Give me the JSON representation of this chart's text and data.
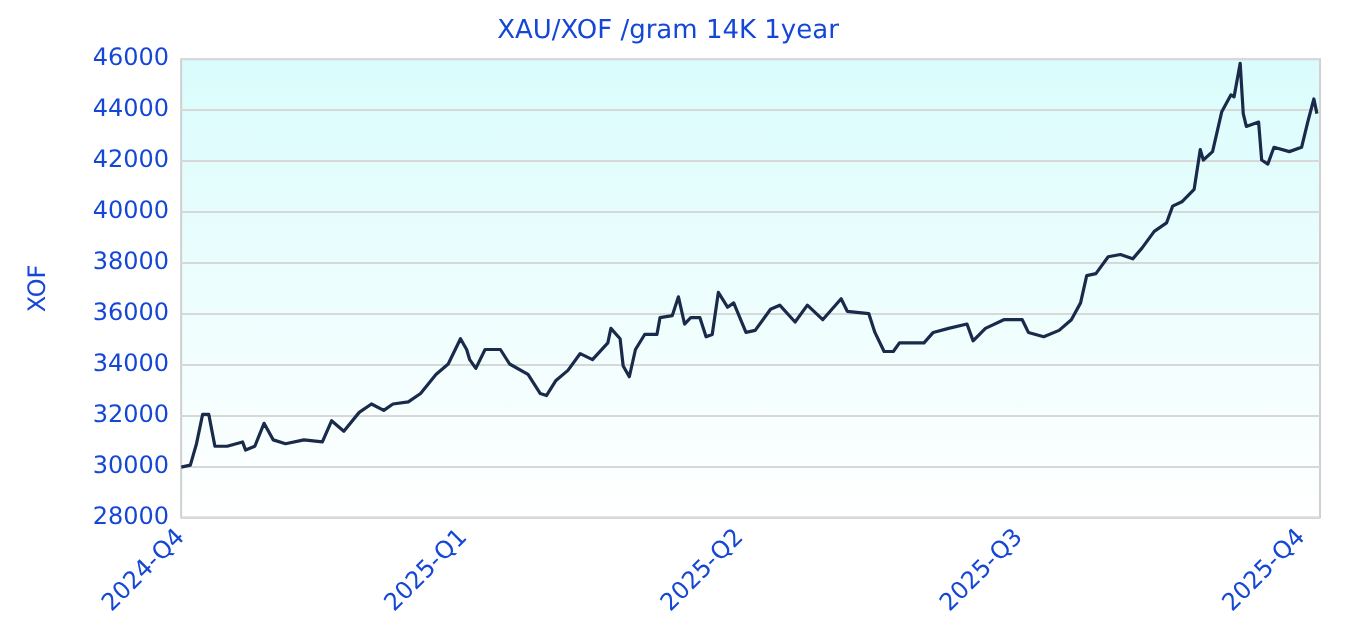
{
  "chart_data": {
    "type": "line",
    "title": "XAU/XOF /gram 14K 1year",
    "ylabel": "XOF",
    "x": [
      "2024-10-01",
      "2024-10-04",
      "2024-10-06",
      "2024-10-08",
      "2024-10-10",
      "2024-10-12",
      "2024-10-16",
      "2024-10-21",
      "2024-10-22",
      "2024-10-25",
      "2024-10-28",
      "2024-10-31",
      "2024-11-04",
      "2024-11-10",
      "2024-11-16",
      "2024-11-19",
      "2024-11-23",
      "2024-11-28",
      "2024-12-02",
      "2024-12-06",
      "2024-12-09",
      "2024-12-14",
      "2024-12-18",
      "2024-12-23",
      "2024-12-27",
      "2024-12-31",
      "2025-01-02",
      "2025-01-03",
      "2025-01-05",
      "2025-01-08",
      "2025-01-13",
      "2025-01-16",
      "2025-01-22",
      "2025-01-26",
      "2025-01-28",
      "2025-01-31",
      "2025-02-04",
      "2025-02-08",
      "2025-02-12",
      "2025-02-17",
      "2025-02-18",
      "2025-02-21",
      "2025-02-22",
      "2025-02-24",
      "2025-02-26",
      "2025-03-01",
      "2025-03-05",
      "2025-03-06",
      "2025-03-10",
      "2025-03-12",
      "2025-03-14",
      "2025-03-16",
      "2025-03-19",
      "2025-03-21",
      "2025-03-23",
      "2025-03-25",
      "2025-03-28",
      "2025-03-30",
      "2025-04-03",
      "2025-04-06",
      "2025-04-11",
      "2025-04-14",
      "2025-04-19",
      "2025-04-23",
      "2025-04-28",
      "2025-05-04",
      "2025-05-06",
      "2025-05-13",
      "2025-05-15",
      "2025-05-18",
      "2025-05-21",
      "2025-05-23",
      "2025-05-29",
      "2025-05-31",
      "2025-06-03",
      "2025-06-08",
      "2025-06-14",
      "2025-06-16",
      "2025-06-20",
      "2025-06-26",
      "2025-06-29",
      "2025-07-02",
      "2025-07-04",
      "2025-07-09",
      "2025-07-14",
      "2025-07-18",
      "2025-07-21",
      "2025-07-23",
      "2025-07-26",
      "2025-07-30",
      "2025-08-03",
      "2025-08-07",
      "2025-08-10",
      "2025-08-14",
      "2025-08-18",
      "2025-08-20",
      "2025-08-23",
      "2025-08-27",
      "2025-08-29",
      "2025-08-30",
      "2025-09-02",
      "2025-09-05",
      "2025-09-08",
      "2025-09-09",
      "2025-09-11",
      "2025-09-12",
      "2025-09-13",
      "2025-09-17",
      "2025-09-18",
      "2025-09-20",
      "2025-09-22",
      "2025-09-27",
      "2025-10-01",
      "2025-10-03",
      "2025-10-05",
      "2025-10-06"
    ],
    "series": [
      {
        "color": "#1a2a4a",
        "values": [
          29980,
          30060,
          30900,
          32050,
          32050,
          30800,
          30800,
          30970,
          30650,
          30800,
          31700,
          31050,
          30900,
          31050,
          30970,
          31800,
          31390,
          32130,
          32460,
          32210,
          32460,
          32540,
          32870,
          33620,
          34030,
          35020,
          34600,
          34200,
          33860,
          34600,
          34600,
          34030,
          33620,
          32870,
          32790,
          33370,
          33780,
          34440,
          34200,
          34860,
          35430,
          35020,
          33950,
          33530,
          34600,
          35190,
          35190,
          35850,
          35930,
          36670,
          35600,
          35850,
          35850,
          35100,
          35190,
          36840,
          36260,
          36430,
          35270,
          35350,
          36180,
          36340,
          35680,
          36340,
          35770,
          36590,
          36100,
          36010,
          35270,
          34520,
          34520,
          34860,
          34860,
          34860,
          35270,
          35430,
          35600,
          34940,
          35430,
          35770,
          35770,
          35770,
          35270,
          35100,
          35350,
          35770,
          36430,
          37500,
          37580,
          38240,
          38330,
          38160,
          38580,
          39240,
          39570,
          40230,
          40400,
          40890,
          42450,
          42040,
          42370,
          43940,
          44600,
          44520,
          45840,
          43860,
          43360,
          43530,
          42040,
          41880,
          42540,
          42370,
          42540,
          43530,
          44440,
          43860
        ]
      }
    ],
    "xlim": [
      "2024-10-01",
      "2025-10-07"
    ],
    "xticks": [
      {
        "value": "2024-10-01",
        "label": "2024-Q4"
      },
      {
        "value": "2025-01-01",
        "label": "2025-Q1"
      },
      {
        "value": "2025-04-01",
        "label": "2025-Q2"
      },
      {
        "value": "2025-07-01",
        "label": "2025-Q3"
      },
      {
        "value": "2025-10-01",
        "label": "2025-Q4"
      }
    ],
    "ylim": [
      28000,
      46000
    ],
    "yticks": [
      28000,
      30000,
      32000,
      34000,
      36000,
      38000,
      40000,
      42000,
      44000,
      46000
    ],
    "grid": "y",
    "legend": false,
    "marker": "none",
    "line_style": "solid"
  }
}
